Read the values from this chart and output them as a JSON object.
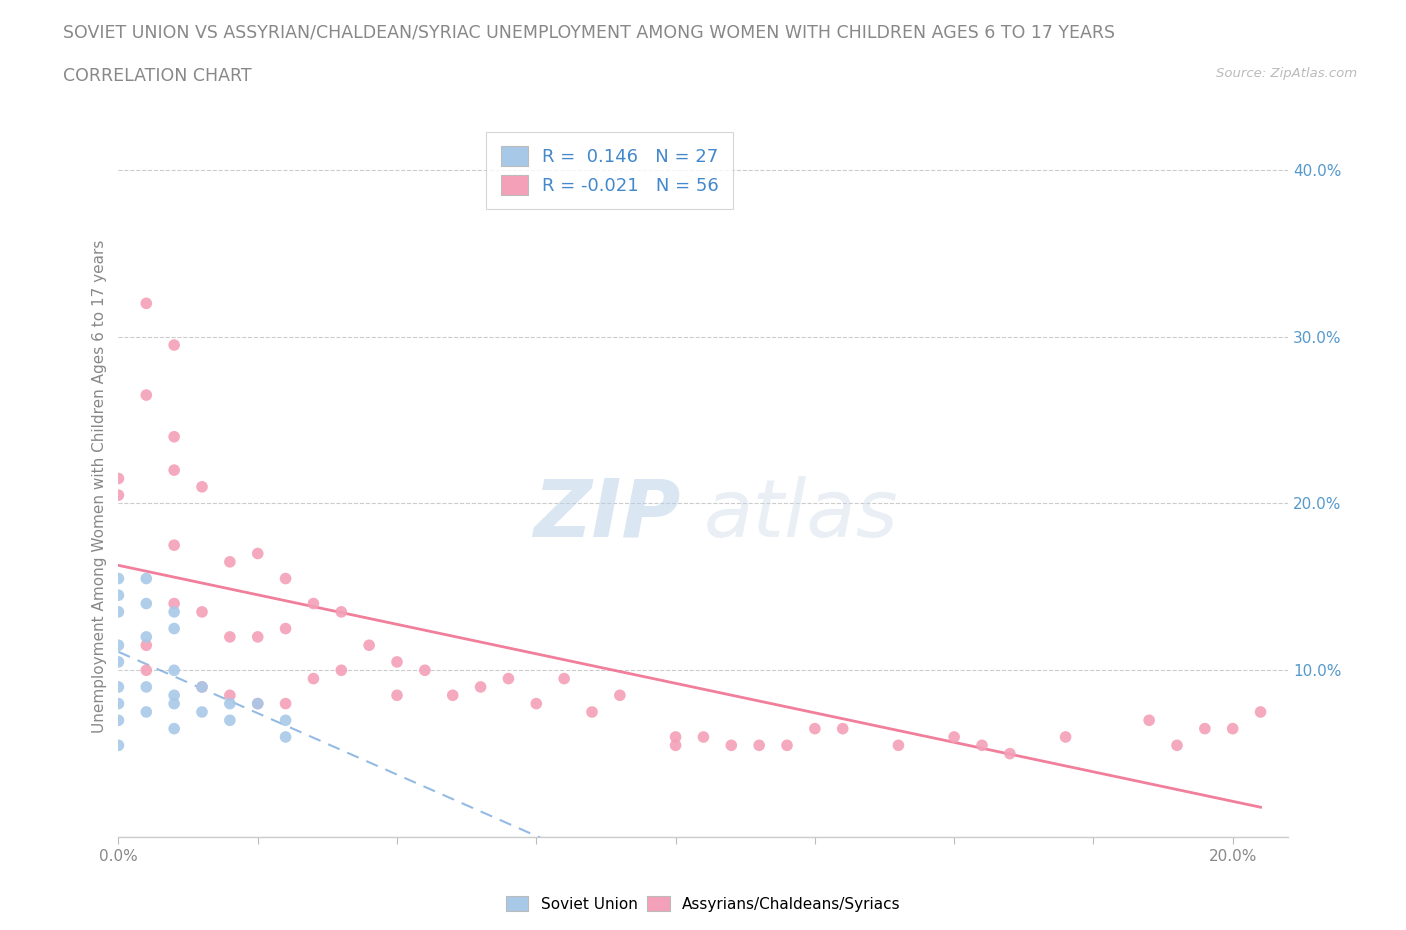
{
  "title_line1": "SOVIET UNION VS ASSYRIAN/CHALDEAN/SYRIAC UNEMPLOYMENT AMONG WOMEN WITH CHILDREN AGES 6 TO 17 YEARS",
  "title_line2": "CORRELATION CHART",
  "source_text": "Source: ZipAtlas.com",
  "watermark_zip": "ZIP",
  "watermark_atlas": "atlas",
  "ylabel": "Unemployment Among Women with Children Ages 6 to 17 years",
  "xlim": [
    0.0,
    0.21
  ],
  "ylim": [
    0.0,
    0.42
  ],
  "xticks": [
    0.0,
    0.025,
    0.05,
    0.075,
    0.1,
    0.125,
    0.15,
    0.175,
    0.2
  ],
  "yticks_right": [
    0.0,
    0.1,
    0.2,
    0.3,
    0.4
  ],
  "yticklabels_right": [
    "",
    "10.0%",
    "20.0%",
    "30.0%",
    "40.0%"
  ],
  "soviet_color": "#a8c8e8",
  "assyrian_color": "#f4a0b8",
  "soviet_line_color": "#7aaadd",
  "assyrian_line_color": "#f07090",
  "soviet_R": 0.146,
  "soviet_N": 27,
  "assyrian_R": -0.021,
  "assyrian_N": 56,
  "background_color": "#ffffff",
  "grid_color": "#cccccc",
  "title_color": "#888888",
  "legend_text_color": "#4488cc",
  "soviet_points_x": [
    0.0,
    0.0,
    0.0,
    0.0,
    0.0,
    0.0,
    0.0,
    0.0,
    0.0,
    0.005,
    0.005,
    0.005,
    0.005,
    0.005,
    0.01,
    0.01,
    0.01,
    0.01,
    0.01,
    0.01,
    0.015,
    0.015,
    0.02,
    0.02,
    0.025,
    0.03,
    0.03
  ],
  "soviet_points_y": [
    0.155,
    0.145,
    0.135,
    0.115,
    0.105,
    0.09,
    0.08,
    0.07,
    0.055,
    0.155,
    0.14,
    0.12,
    0.09,
    0.075,
    0.135,
    0.125,
    0.1,
    0.085,
    0.08,
    0.065,
    0.09,
    0.075,
    0.08,
    0.07,
    0.08,
    0.07,
    0.06
  ],
  "assyrian_points_x": [
    0.0,
    0.0,
    0.005,
    0.005,
    0.005,
    0.01,
    0.01,
    0.01,
    0.015,
    0.015,
    0.015,
    0.02,
    0.02,
    0.02,
    0.025,
    0.025,
    0.025,
    0.03,
    0.03,
    0.03,
    0.035,
    0.035,
    0.04,
    0.04,
    0.045,
    0.05,
    0.05,
    0.055,
    0.06,
    0.065,
    0.07,
    0.075,
    0.08,
    0.085,
    0.09,
    0.1,
    0.1,
    0.105,
    0.11,
    0.115,
    0.12,
    0.125,
    0.13,
    0.14,
    0.15,
    0.155,
    0.16,
    0.17,
    0.185,
    0.19,
    0.195,
    0.2,
    0.205,
    0.005,
    0.01,
    0.01
  ],
  "assyrian_points_y": [
    0.215,
    0.205,
    0.32,
    0.115,
    0.1,
    0.295,
    0.175,
    0.14,
    0.21,
    0.135,
    0.09,
    0.165,
    0.12,
    0.085,
    0.17,
    0.12,
    0.08,
    0.155,
    0.125,
    0.08,
    0.14,
    0.095,
    0.135,
    0.1,
    0.115,
    0.105,
    0.085,
    0.1,
    0.085,
    0.09,
    0.095,
    0.08,
    0.095,
    0.075,
    0.085,
    0.06,
    0.055,
    0.06,
    0.055,
    0.055,
    0.055,
    0.065,
    0.065,
    0.055,
    0.06,
    0.055,
    0.05,
    0.06,
    0.07,
    0.055,
    0.065,
    0.065,
    0.075,
    0.265,
    0.24,
    0.22
  ]
}
